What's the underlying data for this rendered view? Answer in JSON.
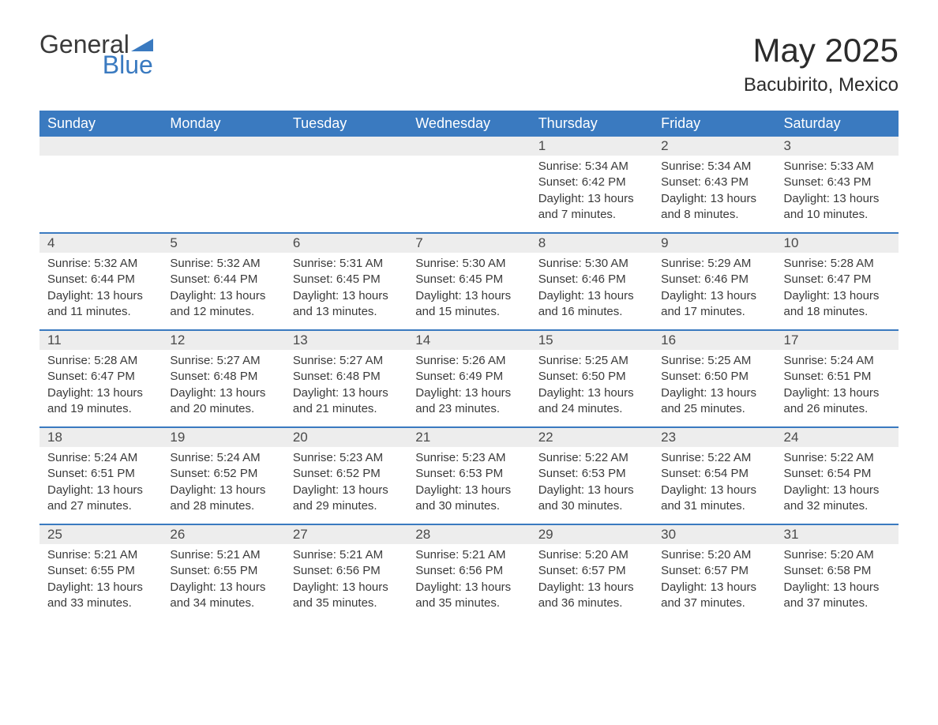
{
  "logo": {
    "word1": "General",
    "word2": "Blue",
    "icon_color": "#3a7ac0",
    "text_color_gray": "#3a3a3a"
  },
  "title": "May 2025",
  "location": "Bacubirito, Mexico",
  "colors": {
    "header_bg": "#3a7ac0",
    "header_text": "#ffffff",
    "daynum_bg": "#ededed",
    "border": "#3a7ac0",
    "body_text": "#3a3a3a",
    "background": "#ffffff"
  },
  "day_names": [
    "Sunday",
    "Monday",
    "Tuesday",
    "Wednesday",
    "Thursday",
    "Friday",
    "Saturday"
  ],
  "weeks": [
    [
      {
        "empty": true
      },
      {
        "empty": true
      },
      {
        "empty": true
      },
      {
        "empty": true
      },
      {
        "day": "1",
        "sunrise": "Sunrise: 5:34 AM",
        "sunset": "Sunset: 6:42 PM",
        "daylight": "Daylight: 13 hours and 7 minutes."
      },
      {
        "day": "2",
        "sunrise": "Sunrise: 5:34 AM",
        "sunset": "Sunset: 6:43 PM",
        "daylight": "Daylight: 13 hours and 8 minutes."
      },
      {
        "day": "3",
        "sunrise": "Sunrise: 5:33 AM",
        "sunset": "Sunset: 6:43 PM",
        "daylight": "Daylight: 13 hours and 10 minutes."
      }
    ],
    [
      {
        "day": "4",
        "sunrise": "Sunrise: 5:32 AM",
        "sunset": "Sunset: 6:44 PM",
        "daylight": "Daylight: 13 hours and 11 minutes."
      },
      {
        "day": "5",
        "sunrise": "Sunrise: 5:32 AM",
        "sunset": "Sunset: 6:44 PM",
        "daylight": "Daylight: 13 hours and 12 minutes."
      },
      {
        "day": "6",
        "sunrise": "Sunrise: 5:31 AM",
        "sunset": "Sunset: 6:45 PM",
        "daylight": "Daylight: 13 hours and 13 minutes."
      },
      {
        "day": "7",
        "sunrise": "Sunrise: 5:30 AM",
        "sunset": "Sunset: 6:45 PM",
        "daylight": "Daylight: 13 hours and 15 minutes."
      },
      {
        "day": "8",
        "sunrise": "Sunrise: 5:30 AM",
        "sunset": "Sunset: 6:46 PM",
        "daylight": "Daylight: 13 hours and 16 minutes."
      },
      {
        "day": "9",
        "sunrise": "Sunrise: 5:29 AM",
        "sunset": "Sunset: 6:46 PM",
        "daylight": "Daylight: 13 hours and 17 minutes."
      },
      {
        "day": "10",
        "sunrise": "Sunrise: 5:28 AM",
        "sunset": "Sunset: 6:47 PM",
        "daylight": "Daylight: 13 hours and 18 minutes."
      }
    ],
    [
      {
        "day": "11",
        "sunrise": "Sunrise: 5:28 AM",
        "sunset": "Sunset: 6:47 PM",
        "daylight": "Daylight: 13 hours and 19 minutes."
      },
      {
        "day": "12",
        "sunrise": "Sunrise: 5:27 AM",
        "sunset": "Sunset: 6:48 PM",
        "daylight": "Daylight: 13 hours and 20 minutes."
      },
      {
        "day": "13",
        "sunrise": "Sunrise: 5:27 AM",
        "sunset": "Sunset: 6:48 PM",
        "daylight": "Daylight: 13 hours and 21 minutes."
      },
      {
        "day": "14",
        "sunrise": "Sunrise: 5:26 AM",
        "sunset": "Sunset: 6:49 PM",
        "daylight": "Daylight: 13 hours and 23 minutes."
      },
      {
        "day": "15",
        "sunrise": "Sunrise: 5:25 AM",
        "sunset": "Sunset: 6:50 PM",
        "daylight": "Daylight: 13 hours and 24 minutes."
      },
      {
        "day": "16",
        "sunrise": "Sunrise: 5:25 AM",
        "sunset": "Sunset: 6:50 PM",
        "daylight": "Daylight: 13 hours and 25 minutes."
      },
      {
        "day": "17",
        "sunrise": "Sunrise: 5:24 AM",
        "sunset": "Sunset: 6:51 PM",
        "daylight": "Daylight: 13 hours and 26 minutes."
      }
    ],
    [
      {
        "day": "18",
        "sunrise": "Sunrise: 5:24 AM",
        "sunset": "Sunset: 6:51 PM",
        "daylight": "Daylight: 13 hours and 27 minutes."
      },
      {
        "day": "19",
        "sunrise": "Sunrise: 5:24 AM",
        "sunset": "Sunset: 6:52 PM",
        "daylight": "Daylight: 13 hours and 28 minutes."
      },
      {
        "day": "20",
        "sunrise": "Sunrise: 5:23 AM",
        "sunset": "Sunset: 6:52 PM",
        "daylight": "Daylight: 13 hours and 29 minutes."
      },
      {
        "day": "21",
        "sunrise": "Sunrise: 5:23 AM",
        "sunset": "Sunset: 6:53 PM",
        "daylight": "Daylight: 13 hours and 30 minutes."
      },
      {
        "day": "22",
        "sunrise": "Sunrise: 5:22 AM",
        "sunset": "Sunset: 6:53 PM",
        "daylight": "Daylight: 13 hours and 30 minutes."
      },
      {
        "day": "23",
        "sunrise": "Sunrise: 5:22 AM",
        "sunset": "Sunset: 6:54 PM",
        "daylight": "Daylight: 13 hours and 31 minutes."
      },
      {
        "day": "24",
        "sunrise": "Sunrise: 5:22 AM",
        "sunset": "Sunset: 6:54 PM",
        "daylight": "Daylight: 13 hours and 32 minutes."
      }
    ],
    [
      {
        "day": "25",
        "sunrise": "Sunrise: 5:21 AM",
        "sunset": "Sunset: 6:55 PM",
        "daylight": "Daylight: 13 hours and 33 minutes."
      },
      {
        "day": "26",
        "sunrise": "Sunrise: 5:21 AM",
        "sunset": "Sunset: 6:55 PM",
        "daylight": "Daylight: 13 hours and 34 minutes."
      },
      {
        "day": "27",
        "sunrise": "Sunrise: 5:21 AM",
        "sunset": "Sunset: 6:56 PM",
        "daylight": "Daylight: 13 hours and 35 minutes."
      },
      {
        "day": "28",
        "sunrise": "Sunrise: 5:21 AM",
        "sunset": "Sunset: 6:56 PM",
        "daylight": "Daylight: 13 hours and 35 minutes."
      },
      {
        "day": "29",
        "sunrise": "Sunrise: 5:20 AM",
        "sunset": "Sunset: 6:57 PM",
        "daylight": "Daylight: 13 hours and 36 minutes."
      },
      {
        "day": "30",
        "sunrise": "Sunrise: 5:20 AM",
        "sunset": "Sunset: 6:57 PM",
        "daylight": "Daylight: 13 hours and 37 minutes."
      },
      {
        "day": "31",
        "sunrise": "Sunrise: 5:20 AM",
        "sunset": "Sunset: 6:58 PM",
        "daylight": "Daylight: 13 hours and 37 minutes."
      }
    ]
  ]
}
